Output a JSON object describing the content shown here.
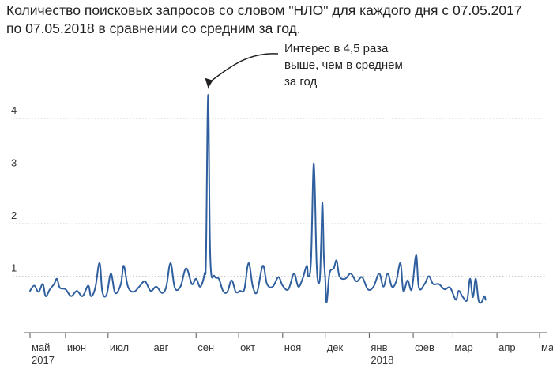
{
  "chart_data": {
    "type": "line",
    "title_lines": [
      "Количество поисковых запросов со словом \"НЛО\" для каждого дня с 07.05.2017",
      "по 07.05.2018 в сравнении со средним за год."
    ],
    "xlabel": "",
    "ylabel": "",
    "ylim": [
      0,
      4.6
    ],
    "y_ticks": [
      1,
      2,
      3,
      4
    ],
    "grid": "horizontal-dotted",
    "x_tick_labels": [
      {
        "label": "май",
        "sub": "2017",
        "day": 0
      },
      {
        "label": "июн",
        "sub": "",
        "day": 25
      },
      {
        "label": "июл",
        "sub": "",
        "day": 55
      },
      {
        "label": "авг",
        "sub": "",
        "day": 86
      },
      {
        "label": "сен",
        "sub": "",
        "day": 117
      },
      {
        "label": "окт",
        "sub": "",
        "day": 147
      },
      {
        "label": "ноя",
        "sub": "",
        "day": 178
      },
      {
        "label": "дек",
        "sub": "",
        "day": 208
      },
      {
        "label": "янв",
        "sub": "2018",
        "day": 239
      },
      {
        "label": "фев",
        "sub": "",
        "day": 270
      },
      {
        "label": "мар",
        "sub": "",
        "day": 298
      },
      {
        "label": "апр",
        "sub": "",
        "day": 329
      },
      {
        "label": "май",
        "sub": "",
        "day": 359
      }
    ],
    "series": [
      {
        "color": "#2f5f9e",
        "points": [
          [
            0,
            0.72
          ],
          [
            3,
            0.82
          ],
          [
            6,
            0.7
          ],
          [
            9,
            0.85
          ],
          [
            11,
            0.62
          ],
          [
            14,
            0.75
          ],
          [
            17,
            0.85
          ],
          [
            19,
            0.95
          ],
          [
            21,
            0.78
          ],
          [
            25,
            0.75
          ],
          [
            29,
            0.62
          ],
          [
            33,
            0.72
          ],
          [
            37,
            0.62
          ],
          [
            41,
            0.82
          ],
          [
            43,
            0.62
          ],
          [
            46,
            0.78
          ],
          [
            49,
            1.25
          ],
          [
            51,
            0.7
          ],
          [
            54,
            0.65
          ],
          [
            57,
            1.05
          ],
          [
            60,
            0.68
          ],
          [
            64,
            0.85
          ],
          [
            66,
            1.2
          ],
          [
            69,
            0.8
          ],
          [
            73,
            0.7
          ],
          [
            77,
            0.8
          ],
          [
            81,
            0.9
          ],
          [
            85,
            0.72
          ],
          [
            89,
            0.8
          ],
          [
            93,
            0.68
          ],
          [
            96,
            0.8
          ],
          [
            99,
            1.25
          ],
          [
            102,
            0.78
          ],
          [
            106,
            0.8
          ],
          [
            110,
            1.15
          ],
          [
            114,
            0.85
          ],
          [
            117,
            0.95
          ],
          [
            120,
            0.8
          ],
          [
            123,
            1.05
          ],
          [
            124,
            1.4
          ],
          [
            125.5,
            4.45
          ],
          [
            127,
            1.35
          ],
          [
            130,
            1.0
          ],
          [
            133,
            0.95
          ],
          [
            136,
            0.72
          ],
          [
            139,
            0.7
          ],
          [
            142,
            0.92
          ],
          [
            145,
            0.7
          ],
          [
            148,
            0.72
          ],
          [
            151,
            0.75
          ],
          [
            154,
            1.25
          ],
          [
            157,
            0.8
          ],
          [
            160,
            0.7
          ],
          [
            164,
            1.2
          ],
          [
            167,
            0.85
          ],
          [
            171,
            0.8
          ],
          [
            175,
            0.98
          ],
          [
            178,
            0.82
          ],
          [
            182,
            0.75
          ],
          [
            186,
            1.05
          ],
          [
            189,
            0.8
          ],
          [
            192,
            0.95
          ],
          [
            195,
            1.2
          ],
          [
            196,
            1.0
          ],
          [
            198,
            1.3
          ],
          [
            200,
            3.15
          ],
          [
            202,
            1.2
          ],
          [
            204,
            0.9
          ],
          [
            205,
            1.55
          ],
          [
            206,
            2.4
          ],
          [
            207,
            1.4
          ],
          [
            208,
            0.95
          ],
          [
            209,
            0.5
          ],
          [
            211,
            1.05
          ],
          [
            214,
            1.15
          ],
          [
            216,
            1.3
          ],
          [
            218,
            1.0
          ],
          [
            222,
            0.95
          ],
          [
            226,
            1.05
          ],
          [
            230,
            0.9
          ],
          [
            234,
            0.98
          ],
          [
            238,
            0.75
          ],
          [
            242,
            0.8
          ],
          [
            246,
            1.05
          ],
          [
            249,
            0.8
          ],
          [
            252,
            1.05
          ],
          [
            255,
            0.8
          ],
          [
            258,
            0.9
          ],
          [
            261,
            1.25
          ],
          [
            263,
            0.72
          ],
          [
            266,
            0.92
          ],
          [
            269,
            0.75
          ],
          [
            272,
            1.4
          ],
          [
            274,
            0.78
          ],
          [
            278,
            0.85
          ],
          [
            281,
            1.0
          ],
          [
            284,
            0.85
          ],
          [
            288,
            0.85
          ],
          [
            292,
            0.75
          ],
          [
            296,
            0.78
          ],
          [
            300,
            0.55
          ],
          [
            302,
            0.72
          ],
          [
            305,
            0.6
          ],
          [
            308,
            0.55
          ],
          [
            310,
            0.95
          ],
          [
            312,
            0.6
          ],
          [
            314,
            0.95
          ],
          [
            316,
            0.55
          ],
          [
            318,
            0.5
          ],
          [
            320,
            0.62
          ],
          [
            321,
            0.55
          ]
        ]
      }
    ],
    "annotation": {
      "text_lines": [
        "Интерес в 4,5 раза",
        "выше, чем в среднем",
        "за год"
      ],
      "target_day": 125.5,
      "target_value": 4.5
    }
  }
}
